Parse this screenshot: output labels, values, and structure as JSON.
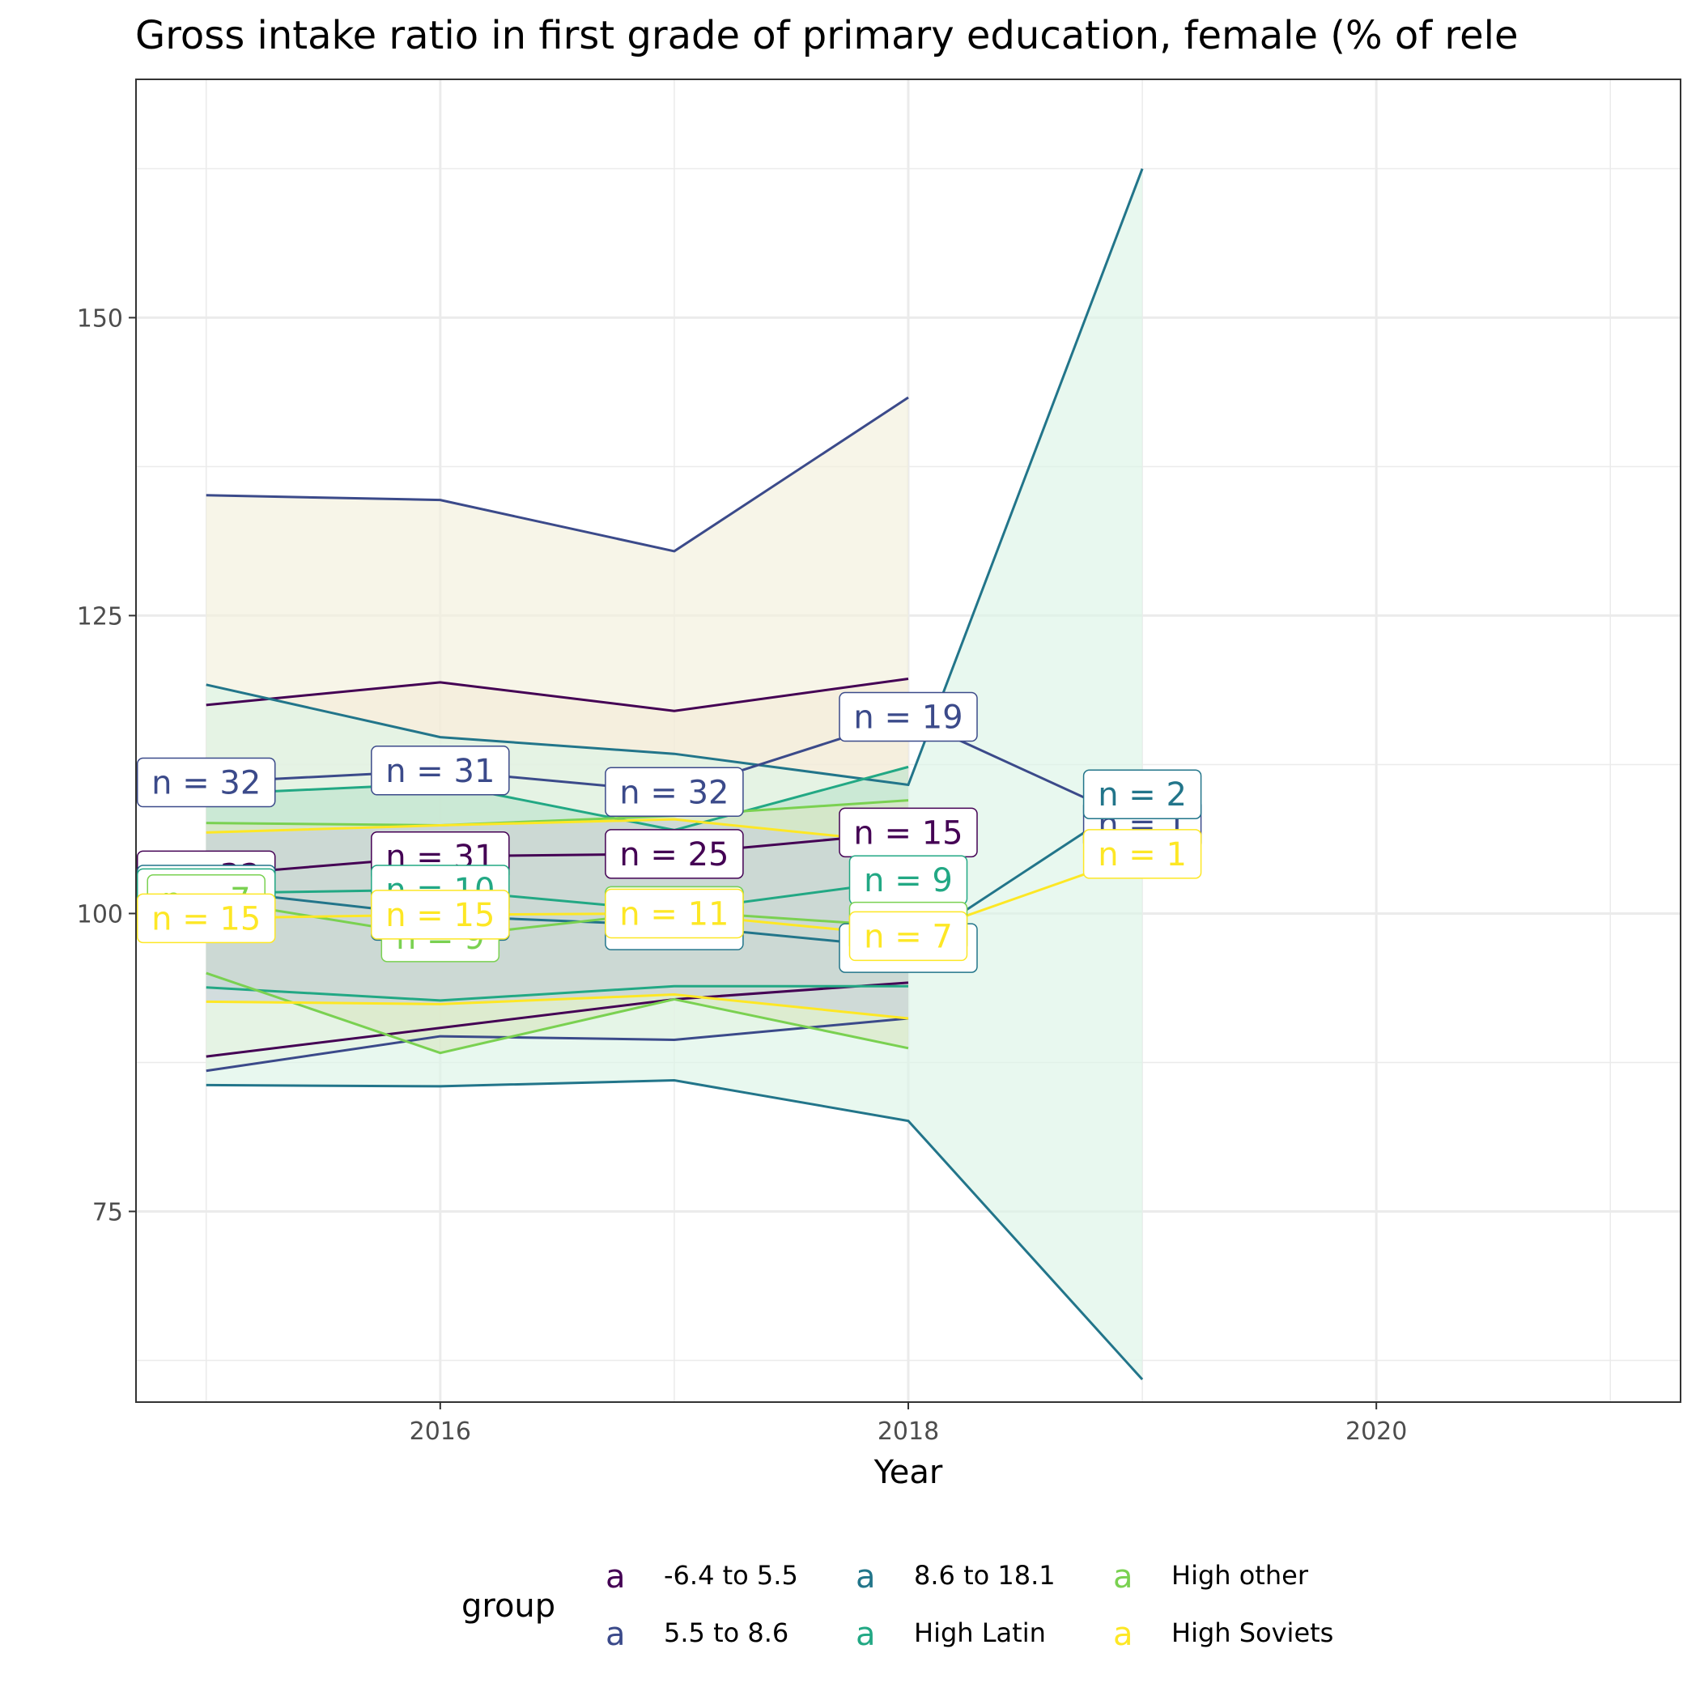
{
  "chart_data": {
    "type": "line",
    "title": "Gross intake ratio in first grade of primary education, female (% of rele",
    "xlabel": "Year",
    "ylabel": "",
    "x_ticks": [
      "2016",
      "2018",
      "2020"
    ],
    "y_ticks": [
      "75",
      "100",
      "125",
      "150"
    ],
    "xlim": [
      2014.7,
      2021.3
    ],
    "ylim": [
      59,
      170
    ],
    "grid": true,
    "legend": {
      "title": "group",
      "position": "bottom",
      "key_glyph": "a",
      "entries": [
        "-6.4 to 5.5",
        "5.5 to 8.6",
        "8.6 to 18.1",
        "High Latin",
        "High other",
        "High Soviets"
      ]
    },
    "colors": {
      "-6.4 to 5.5": "#440154",
      "5.5 to 8.6": "#3b4a8a",
      "8.6 to 18.1": "#22758a",
      "High Latin": "#22a884",
      "High other": "#7ad151",
      "High Soviets": "#fde725"
    },
    "series": [
      {
        "name": "-6.4 to 5.5",
        "x": [
          2015,
          2016,
          2017,
          2018
        ],
        "median": [
          103.2,
          104.8,
          105.0,
          106.8
        ],
        "upper": [
          117.5,
          119.4,
          117.0,
          119.7
        ],
        "lower": [
          88.0,
          90.4,
          92.8,
          94.2
        ],
        "n": [
          "n = 32",
          "n = 31",
          "n = 25",
          "n = 15"
        ]
      },
      {
        "name": "5.5 to 8.6",
        "x": [
          2015,
          2016,
          2017,
          2018,
          2019
        ],
        "median": [
          111.0,
          112.0,
          110.2,
          116.5,
          107.5
        ],
        "upper": [
          135.1,
          134.7,
          130.4,
          143.3,
          null
        ],
        "lower": [
          86.8,
          89.7,
          89.4,
          91.2,
          null
        ],
        "n": [
          "n = 32",
          "n = 31",
          "n = 32",
          "n = 19",
          "n = 1"
        ]
      },
      {
        "name": "8.6 to 18.1",
        "x": [
          2015,
          2016,
          2017,
          2018,
          2019
        ],
        "median": [
          102.0,
          99.8,
          99.0,
          97.1,
          110.0
        ],
        "upper": [
          119.2,
          114.8,
          113.4,
          110.8,
          162.5
        ],
        "lower": [
          85.6,
          85.5,
          86.0,
          82.6,
          60.9
        ],
        "n": [
          "n = 15",
          "n = 10",
          "n = 11",
          "n = 13",
          "n = 2"
        ]
      },
      {
        "name": "High Latin",
        "x": [
          2015,
          2016,
          2017,
          2018
        ],
        "median": [
          101.7,
          102.0,
          100.2,
          102.8
        ],
        "upper": [
          110.0,
          110.9,
          107.0,
          112.3
        ],
        "lower": [
          93.8,
          92.7,
          93.9,
          93.9
        ],
        "n": [
          "n = 10",
          "n = 10",
          "n = 11",
          "n = 9"
        ]
      },
      {
        "name": "High other",
        "x": [
          2015,
          2016,
          2017,
          2018
        ],
        "median": [
          101.2,
          98.0,
          100.2,
          98.9
        ],
        "upper": [
          107.6,
          107.4,
          108.2,
          109.5
        ],
        "lower": [
          95.0,
          88.3,
          92.8,
          88.7
        ],
        "n": [
          "n = 7",
          "n = 9",
          "n = 11",
          "n = 7"
        ]
      },
      {
        "name": "High Soviets",
        "x": [
          2015,
          2016,
          2017,
          2018,
          2019
        ],
        "median": [
          99.6,
          99.9,
          100.0,
          98.1,
          105.0
        ],
        "upper": [
          106.8,
          107.4,
          107.9,
          105.9,
          null
        ],
        "lower": [
          92.6,
          92.4,
          93.2,
          91.2,
          null
        ],
        "n": [
          "n = 15",
          "n = 15",
          "n = 11",
          "n = 7",
          "n = 1"
        ]
      }
    ],
    "ribbons": [
      {
        "series": "-6.4 to 5.5",
        "fill": "#f5e3d2"
      },
      {
        "series": "5.5 to 8.6",
        "fill": "#f2efdb"
      },
      {
        "series": "8.6 to 18.1",
        "fill": "#dcf5e6"
      },
      {
        "series": "High Latin",
        "fill": "#bde4cc"
      },
      {
        "series": "High other",
        "fill": "#d9e6c3"
      },
      {
        "series": "High Soviets",
        "fill": "#c8d1da"
      }
    ]
  }
}
